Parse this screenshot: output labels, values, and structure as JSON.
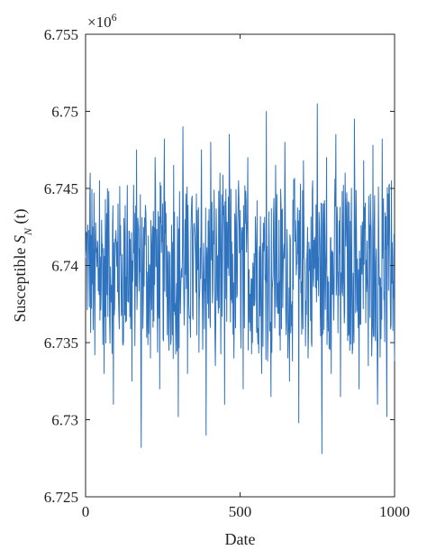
{
  "chart_data": {
    "type": "line",
    "xlabel": "Date",
    "ylabel_text": "Susceptible ",
    "ylabel_var": "S",
    "ylabel_sub": "N",
    "ylabel_arg": " (t)",
    "exponent_base": "×10",
    "exponent_power": "6",
    "xlim": [
      0,
      1000
    ],
    "ylim": [
      6.725,
      6.755
    ],
    "y_scale_factor": 1000000,
    "x_ticks": [
      "0",
      "500",
      "1000"
    ],
    "x_tick_values": [
      0,
      500,
      1000
    ],
    "y_ticks": [
      "6.725",
      "6.73",
      "6.735",
      "6.74",
      "6.745",
      "6.75",
      "6.755"
    ],
    "y_tick_values": [
      6.725,
      6.73,
      6.735,
      6.74,
      6.745,
      6.75,
      6.755
    ],
    "grid": false,
    "line_color": "#2f72bd",
    "series": [
      {
        "x": [
          0,
          15,
          30,
          45,
          60,
          75,
          90,
          105,
          120,
          135,
          150,
          165,
          180,
          195,
          210,
          225,
          240,
          255,
          270,
          285,
          300,
          315,
          330,
          345,
          360,
          375,
          390,
          405,
          420,
          435,
          450,
          465,
          480,
          495,
          510,
          525,
          540,
          555,
          570,
          585,
          600,
          615,
          630,
          645,
          660,
          675,
          690,
          705,
          720,
          735,
          750,
          765,
          780,
          795,
          810,
          825,
          840,
          855,
          870,
          885,
          900,
          915,
          930,
          945,
          960,
          975,
          990,
          1000
        ],
        "values": [
          6.7405,
          6.746,
          6.7342,
          6.7455,
          6.733,
          6.7448,
          6.731,
          6.744,
          6.735,
          6.7452,
          6.7325,
          6.7475,
          6.7282,
          6.7435,
          6.734,
          6.747,
          6.732,
          6.7482,
          6.7345,
          6.7465,
          6.7302,
          6.749,
          6.733,
          6.7445,
          6.7355,
          6.7475,
          6.729,
          6.748,
          6.7335,
          6.746,
          6.731,
          6.7485,
          6.734,
          6.7455,
          6.732,
          6.747,
          6.735,
          6.7442,
          6.733,
          6.75,
          6.7315,
          6.7465,
          6.7345,
          6.748,
          6.7325,
          6.745,
          6.7298,
          6.7468,
          6.734,
          6.7455,
          6.7505,
          6.7278,
          6.747,
          6.733,
          6.7485,
          6.7315,
          6.746,
          6.7345,
          6.7495,
          6.732,
          6.7468,
          6.7335,
          6.7478,
          6.731,
          6.7482,
          6.7302,
          6.7455,
          6.7338
        ]
      }
    ]
  }
}
